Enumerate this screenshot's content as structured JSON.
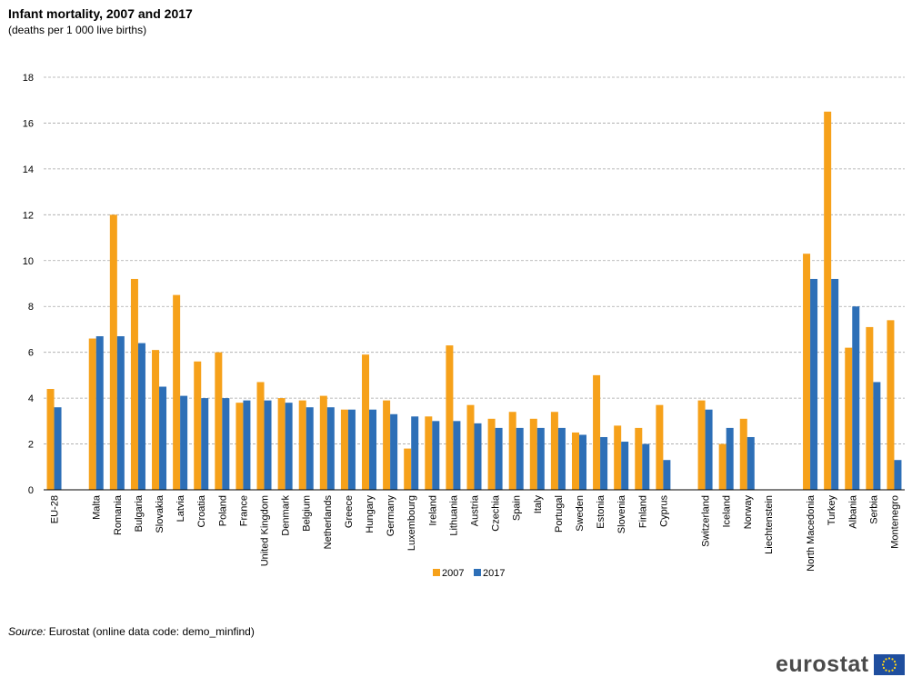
{
  "title": "Infant mortality, 2007 and 2017",
  "subtitle": "(deaths per 1 000 live births)",
  "source": {
    "label": "Source:",
    "text": "Eurostat (online data code: demo_minfind)"
  },
  "logo": {
    "text": "eurostat",
    "flag_icon": "eu-flag-icon"
  },
  "colors": {
    "series_2007": "#F6A11A",
    "series_2017": "#2D6FB7",
    "grid": "#A6A6A6",
    "axis": "#000000"
  },
  "chart_data": {
    "type": "bar",
    "title": "Infant mortality, 2007 and 2017",
    "subtitle": "(deaths per 1 000 live births)",
    "categories": [
      "EU-28",
      "",
      "Malta",
      "Romania",
      "Bulgaria",
      "Slovakia",
      "Latvia",
      "Croatia",
      "Poland",
      "France",
      "United Kingdom",
      "Denmark",
      "Belgium",
      "Netherlands",
      "Greece",
      "Hungary",
      "Germany",
      "Luxembourg",
      "Ireland",
      "Lithuania",
      "Austria",
      "Czechia",
      "Spain",
      "Italy",
      "Portugal",
      "Sweden",
      "Estonia",
      "Slovenia",
      "Finland",
      "Cyprus",
      "",
      "Switzerland",
      "Iceland",
      "Norway",
      "Liechtenstein",
      "",
      "North Macedonia",
      "Turkey",
      "Albania",
      "Serbia",
      "Montenegro"
    ],
    "series": [
      {
        "name": "2007",
        "color": "#F6A11A",
        "values": [
          4.4,
          null,
          6.6,
          12.0,
          9.2,
          6.1,
          8.5,
          5.6,
          6.0,
          3.8,
          4.7,
          4.0,
          3.9,
          4.1,
          3.5,
          5.9,
          3.9,
          1.8,
          3.2,
          6.3,
          3.7,
          3.1,
          3.4,
          3.1,
          3.4,
          2.5,
          5.0,
          2.8,
          2.7,
          3.7,
          null,
          3.9,
          2.0,
          3.1,
          null,
          null,
          10.3,
          16.5,
          6.2,
          7.1,
          7.4
        ]
      },
      {
        "name": "2017",
        "color": "#2D6FB7",
        "values": [
          3.6,
          null,
          6.7,
          6.7,
          6.4,
          4.5,
          4.1,
          4.0,
          4.0,
          3.9,
          3.9,
          3.8,
          3.6,
          3.6,
          3.5,
          3.5,
          3.3,
          3.2,
          3.0,
          3.0,
          2.9,
          2.7,
          2.7,
          2.7,
          2.7,
          2.4,
          2.3,
          2.1,
          2.0,
          1.3,
          null,
          3.5,
          2.7,
          2.3,
          null,
          null,
          9.2,
          9.2,
          8.0,
          4.7,
          1.3
        ]
      }
    ],
    "ylim": [
      0,
      18
    ],
    "yticks": [
      0,
      2,
      4,
      6,
      8,
      10,
      12,
      14,
      16,
      18
    ],
    "grid": true,
    "legend": "bottom-center",
    "xlabel": "",
    "ylabel": ""
  }
}
